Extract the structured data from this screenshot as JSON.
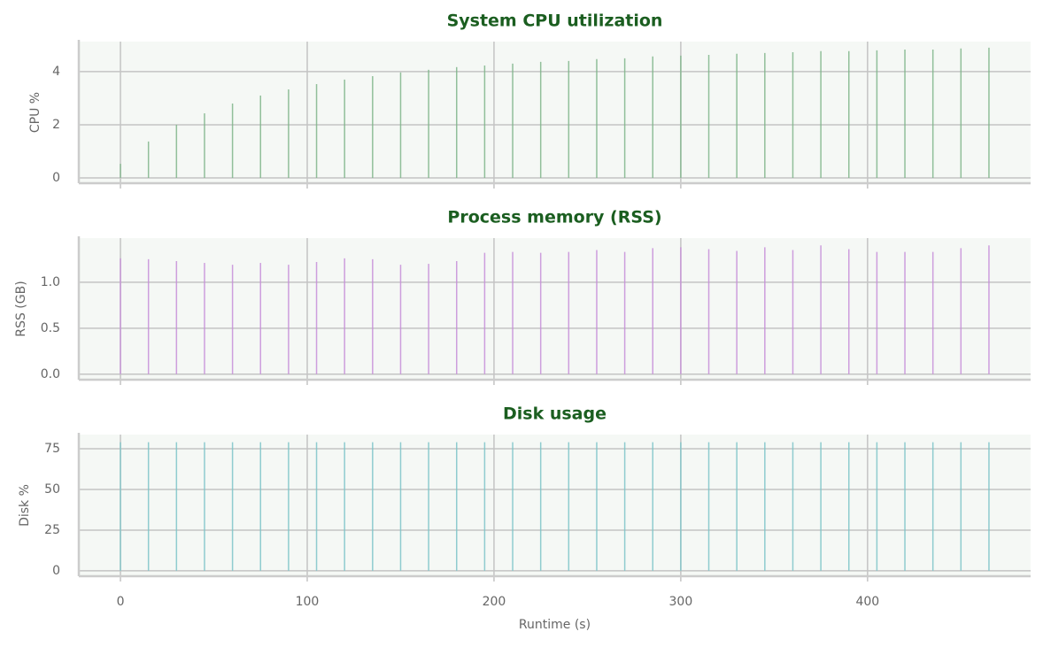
{
  "chart_data": [
    {
      "type": "stem",
      "title": "System CPU utilization",
      "y_label": "CPU %",
      "color": "#7fb58a",
      "x": [
        0,
        15,
        30,
        45,
        60,
        75,
        90,
        105,
        120,
        135,
        150,
        165,
        180,
        195,
        210,
        225,
        240,
        255,
        270,
        285,
        300,
        315,
        330,
        345,
        360,
        375,
        390,
        405,
        420,
        435,
        450,
        465
      ],
      "values": [
        0.53,
        1.37,
        2.0,
        2.43,
        2.8,
        3.1,
        3.33,
        3.53,
        3.7,
        3.83,
        3.97,
        4.07,
        4.17,
        4.23,
        4.3,
        4.37,
        4.4,
        4.47,
        4.5,
        4.57,
        4.6,
        4.63,
        4.67,
        4.7,
        4.73,
        4.77,
        4.77,
        4.8,
        4.83,
        4.83,
        4.87,
        4.9
      ],
      "xlim": [
        -22.3,
        487.3
      ],
      "xticks": [
        0,
        100,
        200,
        300,
        400
      ],
      "ylim": [
        -0.2,
        5.13
      ],
      "yticks": [
        0,
        2,
        4
      ],
      "grid": true
    },
    {
      "type": "stem",
      "title": "Process memory (RSS)",
      "y_label": "RSS (GB)",
      "color": "#c58ed8",
      "x": [
        0,
        15,
        30,
        45,
        60,
        75,
        90,
        105,
        120,
        135,
        150,
        165,
        180,
        195,
        210,
        225,
        240,
        255,
        270,
        285,
        300,
        315,
        330,
        345,
        360,
        375,
        390,
        405,
        420,
        435,
        450,
        465
      ],
      "values": [
        1.26,
        1.25,
        1.23,
        1.21,
        1.19,
        1.21,
        1.19,
        1.22,
        1.26,
        1.25,
        1.19,
        1.2,
        1.23,
        1.32,
        1.33,
        1.32,
        1.33,
        1.35,
        1.33,
        1.37,
        1.38,
        1.36,
        1.34,
        1.38,
        1.35,
        1.4,
        1.36,
        1.33,
        1.33,
        1.33,
        1.37,
        1.4
      ],
      "xlim": [
        -22.3,
        487.3
      ],
      "xticks": [
        0,
        100,
        200,
        300,
        400
      ],
      "ylim": [
        -0.06,
        1.48
      ],
      "yticks": [
        {
          "value": 0,
          "label": "0.0"
        },
        0.5,
        {
          "value": 1,
          "label": "1.0"
        }
      ],
      "grid": true
    },
    {
      "type": "stem",
      "title": "Disk usage",
      "y_label": "Disk %",
      "x_label": "Runtime (s)",
      "color": "#7cc4c8",
      "x": [
        0,
        15,
        30,
        45,
        60,
        75,
        90,
        105,
        120,
        135,
        150,
        165,
        180,
        195,
        210,
        225,
        240,
        255,
        270,
        285,
        300,
        315,
        330,
        345,
        360,
        375,
        390,
        405,
        420,
        435,
        450,
        465
      ],
      "values": [
        79,
        79,
        79,
        79,
        79,
        79,
        79,
        79,
        79,
        79,
        79,
        79,
        79,
        79,
        79,
        79,
        79,
        79,
        79,
        79,
        79,
        79,
        79,
        79,
        79,
        79,
        79,
        79,
        79,
        79,
        79,
        79
      ],
      "xlim": [
        -22.3,
        487.3
      ],
      "xticks": [
        0,
        100,
        200,
        300,
        400
      ],
      "ylim": [
        -3.3,
        83.7
      ],
      "yticks": [
        0,
        25,
        50,
        75
      ],
      "grid": true
    }
  ]
}
